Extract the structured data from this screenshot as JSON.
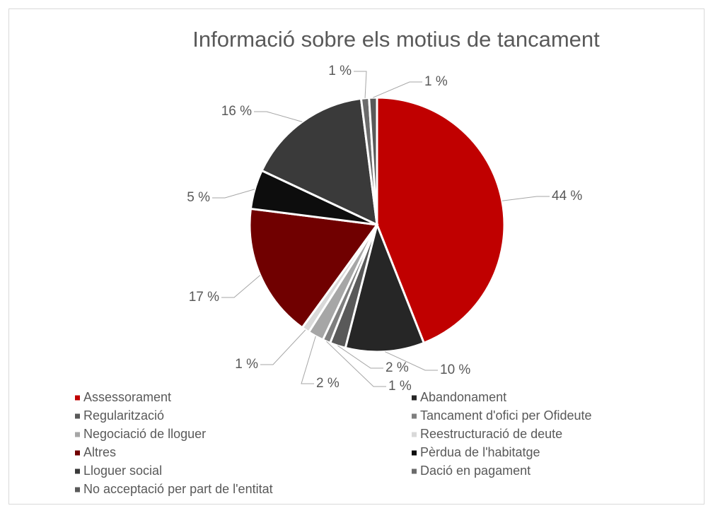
{
  "chart_data": {
    "type": "pie",
    "title": "Informació sobre els motius de tancament",
    "categories": [
      "Assessorament",
      "Abandonament",
      "Regularització",
      "Tancament d'ofici per Ofideute",
      "Negociació de lloguer",
      "Reestructuració de deute",
      "Altres",
      "Pèrdua de l'habitatge",
      "Lloguer social",
      "Dació en pagament",
      "No acceptació per part de l'entitat"
    ],
    "values": [
      44,
      10,
      2,
      1,
      2,
      1,
      17,
      5,
      16,
      1,
      1
    ],
    "value_labels": [
      "44 %",
      "10 %",
      "2 %",
      "1 %",
      "2 %",
      "1 %",
      "17 %",
      "5 %",
      "16 %",
      "1 %",
      "1 %"
    ],
    "colors": [
      "#c00000",
      "#262626",
      "#595959",
      "#7f7f7f",
      "#a6a6a6",
      "#d9d9d9",
      "#700000",
      "#0d0d0d",
      "#3a3a3a",
      "#6b6b6b",
      "#595959"
    ]
  }
}
